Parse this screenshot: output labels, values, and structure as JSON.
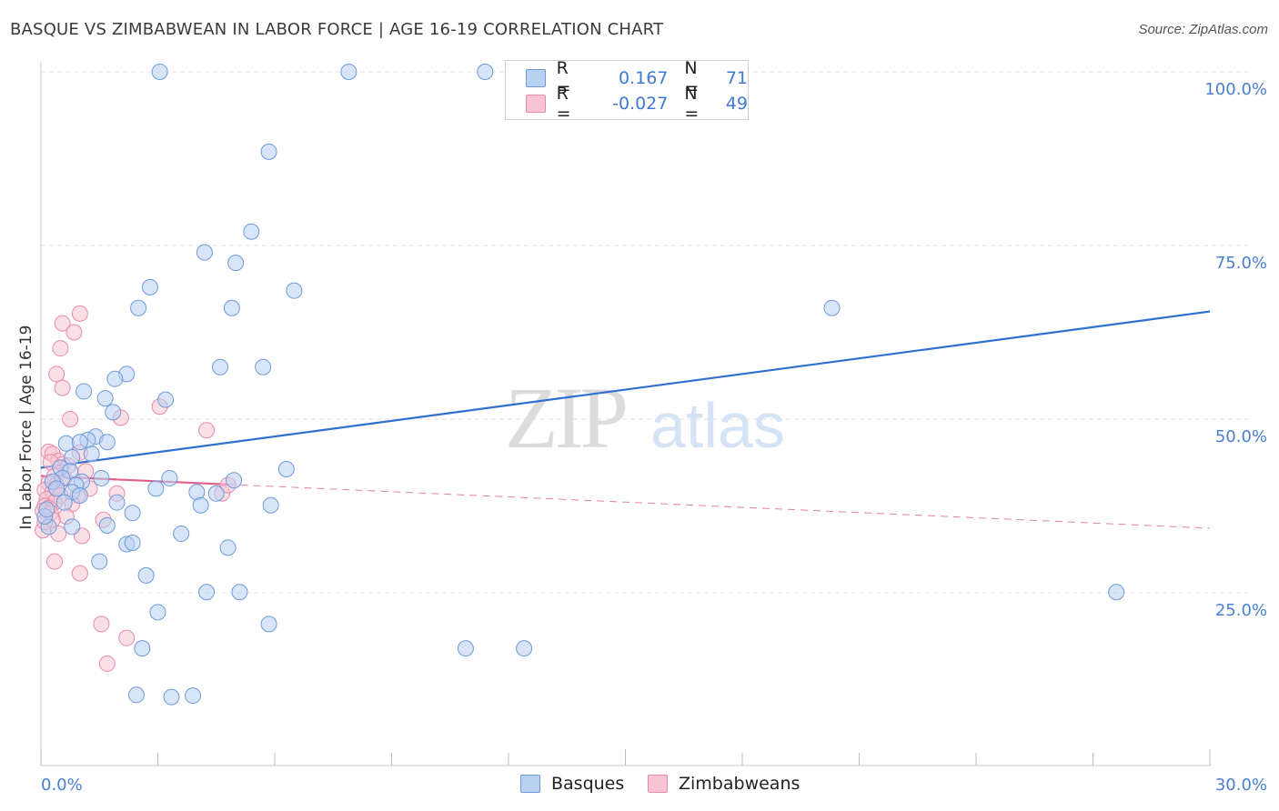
{
  "header": {
    "title": "BASQUE VS ZIMBABWEAN IN LABOR FORCE | AGE 16-19 CORRELATION CHART",
    "source": "Source: ZipAtlas.com"
  },
  "watermark": {
    "zip": "ZIP",
    "atlas": "atlas"
  },
  "legend": {
    "r_label": "R =",
    "n_label": "N =",
    "rows": [
      {
        "r": "0.167",
        "n": "71"
      },
      {
        "r": "-0.027",
        "n": "49"
      }
    ]
  },
  "colors": {
    "basques_fill": "#b8d0f2",
    "basques_stroke": "#6f9ad8",
    "basques_line": "#2f6fcf",
    "zimbabweans_fill": "#f8c4d4",
    "zimbabweans_stroke": "#e88aa8",
    "zimbabweans_line": "#e0608c",
    "tick_text": "#4a7fd0",
    "grid": "#e2e2e2"
  },
  "chart_data": {
    "type": "scatter",
    "title": "BASQUE VS ZIMBABWEAN IN LABOR FORCE | AGE 16-19 CORRELATION CHART",
    "xlabel": "",
    "ylabel": "In Labor Force | Age 16-19",
    "xlim": [
      0,
      30
    ],
    "ylim": [
      0,
      105
    ],
    "x_tick_labels": [
      "0.0%",
      "30.0%"
    ],
    "y_ticks": [
      25,
      50,
      75,
      100
    ],
    "y_tick_labels": [
      "25.0%",
      "50.0%",
      "75.0%",
      "100.0%"
    ],
    "grid": true,
    "legend_position": "bottom",
    "series": [
      {
        "name": "Basques",
        "r": 0.167,
        "n": 71,
        "trend": [
          [
            0,
            43.0
          ],
          [
            30,
            65.5
          ]
        ],
        "points": [
          [
            3.05,
            100
          ],
          [
            7.9,
            100
          ],
          [
            11.4,
            100
          ],
          [
            14.2,
            100
          ],
          [
            5.85,
            88.5
          ],
          [
            5.4,
            77
          ],
          [
            4.2,
            74
          ],
          [
            5.0,
            72.5
          ],
          [
            6.5,
            68.5
          ],
          [
            2.8,
            69
          ],
          [
            2.5,
            66
          ],
          [
            4.9,
            66
          ],
          [
            20.3,
            66
          ],
          [
            4.6,
            57.5
          ],
          [
            5.7,
            57.5
          ],
          [
            2.2,
            56.5
          ],
          [
            1.9,
            55.8
          ],
          [
            1.1,
            54
          ],
          [
            1.65,
            53
          ],
          [
            3.2,
            52.8
          ],
          [
            1.85,
            51
          ],
          [
            1.4,
            47.5
          ],
          [
            1.2,
            47
          ],
          [
            1.7,
            46.7
          ],
          [
            0.65,
            46.5
          ],
          [
            1.0,
            46.7
          ],
          [
            1.3,
            45
          ],
          [
            0.8,
            44.5
          ],
          [
            0.5,
            43
          ],
          [
            0.75,
            42.5
          ],
          [
            0.55,
            41.5
          ],
          [
            1.05,
            41
          ],
          [
            1.55,
            41.5
          ],
          [
            0.3,
            41
          ],
          [
            0.9,
            40.5
          ],
          [
            3.3,
            41.5
          ],
          [
            4.95,
            41.2
          ],
          [
            6.3,
            42.8
          ],
          [
            2.95,
            40
          ],
          [
            4.0,
            39.5
          ],
          [
            4.5,
            39.3
          ],
          [
            0.8,
            39.5
          ],
          [
            1.95,
            38
          ],
          [
            1.0,
            39
          ],
          [
            4.1,
            37.6
          ],
          [
            5.9,
            37.6
          ],
          [
            2.35,
            36.5
          ],
          [
            1.7,
            34.7
          ],
          [
            0.8,
            34.5
          ],
          [
            0.2,
            34.5
          ],
          [
            3.6,
            33.5
          ],
          [
            2.2,
            32
          ],
          [
            2.35,
            32.2
          ],
          [
            4.8,
            31.5
          ],
          [
            1.5,
            29.5
          ],
          [
            2.7,
            27.5
          ],
          [
            4.25,
            25.1
          ],
          [
            5.1,
            25.1
          ],
          [
            27.6,
            25.1
          ],
          [
            3.0,
            22.2
          ],
          [
            5.85,
            20.5
          ],
          [
            2.6,
            17
          ],
          [
            10.9,
            17
          ],
          [
            12.4,
            17
          ],
          [
            2.45,
            10.3
          ],
          [
            3.35,
            10
          ],
          [
            3.9,
            10.2
          ],
          [
            0.1,
            36
          ],
          [
            0.15,
            37
          ],
          [
            0.6,
            38
          ],
          [
            0.4,
            40
          ]
        ]
      },
      {
        "name": "Zimbabweans",
        "r": -0.027,
        "n": 49,
        "trend_solid": [
          [
            0,
            41.8
          ],
          [
            4.8,
            40.6
          ]
        ],
        "trend_dashed": [
          [
            4.8,
            40.6
          ],
          [
            30,
            34.3
          ]
        ],
        "points": [
          [
            1.0,
            65.2
          ],
          [
            0.55,
            63.8
          ],
          [
            0.85,
            62.5
          ],
          [
            0.5,
            60.2
          ],
          [
            0.4,
            56.5
          ],
          [
            0.55,
            54.5
          ],
          [
            3.05,
            51.8
          ],
          [
            2.05,
            50.2
          ],
          [
            0.75,
            50
          ],
          [
            4.25,
            48.4
          ],
          [
            0.2,
            45.3
          ],
          [
            0.3,
            45
          ],
          [
            1.0,
            45.2
          ],
          [
            0.45,
            44
          ],
          [
            0.55,
            43.5
          ],
          [
            0.25,
            43.8
          ],
          [
            0.7,
            43.3
          ],
          [
            1.15,
            42.5
          ],
          [
            0.35,
            41.8
          ],
          [
            0.6,
            41.5
          ],
          [
            0.2,
            40.8
          ],
          [
            0.4,
            40.5
          ],
          [
            1.25,
            40
          ],
          [
            0.1,
            39.8
          ],
          [
            0.3,
            39.5
          ],
          [
            0.5,
            39
          ],
          [
            0.95,
            39
          ],
          [
            0.15,
            38.5
          ],
          [
            0.35,
            38
          ],
          [
            0.1,
            37.5
          ],
          [
            0.2,
            37.2
          ],
          [
            0.8,
            37.8
          ],
          [
            0.05,
            36.8
          ],
          [
            0.25,
            36.5
          ],
          [
            0.65,
            36
          ],
          [
            1.95,
            39.3
          ],
          [
            4.65,
            39.3
          ],
          [
            4.8,
            40.5
          ],
          [
            1.6,
            35.5
          ],
          [
            0.3,
            35.5
          ],
          [
            0.05,
            34
          ],
          [
            1.05,
            33.2
          ],
          [
            1.0,
            27.8
          ],
          [
            0.35,
            29.5
          ],
          [
            1.55,
            20.5
          ],
          [
            2.2,
            18.5
          ],
          [
            1.7,
            14.8
          ],
          [
            0.1,
            35.2
          ],
          [
            0.45,
            33.5
          ]
        ]
      }
    ]
  },
  "bottom_legend": [
    "Basques",
    "Zimbabweans"
  ]
}
